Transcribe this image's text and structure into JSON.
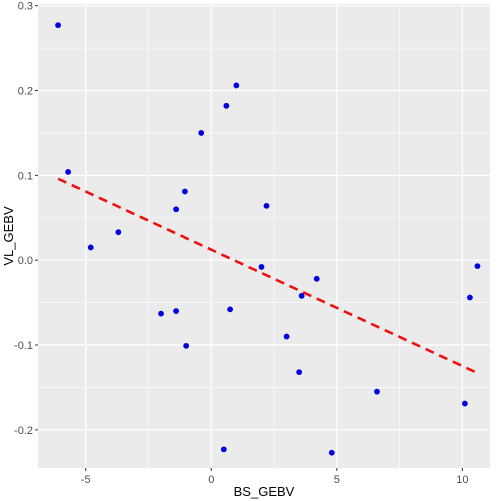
{
  "chart_data": {
    "type": "scatter",
    "title": "",
    "xlabel": "BS_GEBV",
    "ylabel": "VL_GEBV",
    "xlim": [
      -6.9,
      11.1
    ],
    "ylim": [
      -0.245,
      0.302
    ],
    "x_ticks": [
      -5,
      0,
      5,
      10
    ],
    "y_ticks": [
      -0.2,
      -0.1,
      0.0,
      0.1,
      0.2,
      0.3
    ],
    "x_tick_labels": [
      "-5",
      "0",
      "5",
      "10"
    ],
    "y_tick_labels": [
      "-0.2",
      "-0.1",
      "0.0",
      "0.1",
      "0.2",
      "0.3"
    ],
    "grid": true,
    "legend": "none",
    "colors": {
      "panel": "#ebebeb",
      "grid_major": "#ffffff",
      "point": "#0000e0",
      "trend": "#ee1111"
    },
    "points": [
      {
        "x": -6.1,
        "y": 0.277
      },
      {
        "x": -5.7,
        "y": 0.104
      },
      {
        "x": -4.8,
        "y": 0.015
      },
      {
        "x": -3.7,
        "y": 0.033
      },
      {
        "x": -2.0,
        "y": -0.063
      },
      {
        "x": -1.4,
        "y": 0.06
      },
      {
        "x": -1.4,
        "y": -0.06
      },
      {
        "x": -1.05,
        "y": 0.081
      },
      {
        "x": -1.0,
        "y": -0.101
      },
      {
        "x": -0.4,
        "y": 0.15
      },
      {
        "x": 0.5,
        "y": -0.223
      },
      {
        "x": 0.6,
        "y": 0.182
      },
      {
        "x": 0.75,
        "y": -0.058
      },
      {
        "x": 1.0,
        "y": 0.206
      },
      {
        "x": 2.0,
        "y": -0.008
      },
      {
        "x": 2.2,
        "y": 0.064
      },
      {
        "x": 3.0,
        "y": -0.09
      },
      {
        "x": 3.5,
        "y": -0.132
      },
      {
        "x": 3.6,
        "y": -0.042
      },
      {
        "x": 4.2,
        "y": -0.022
      },
      {
        "x": 4.8,
        "y": -0.227
      },
      {
        "x": 6.6,
        "y": -0.155
      },
      {
        "x": 10.1,
        "y": -0.169
      },
      {
        "x": 10.3,
        "y": -0.044
      },
      {
        "x": 10.6,
        "y": -0.007
      }
    ],
    "trend_line": {
      "style": "dashed",
      "x": [
        -6.1,
        10.6
      ],
      "y": [
        0.096,
        -0.133
      ]
    }
  }
}
